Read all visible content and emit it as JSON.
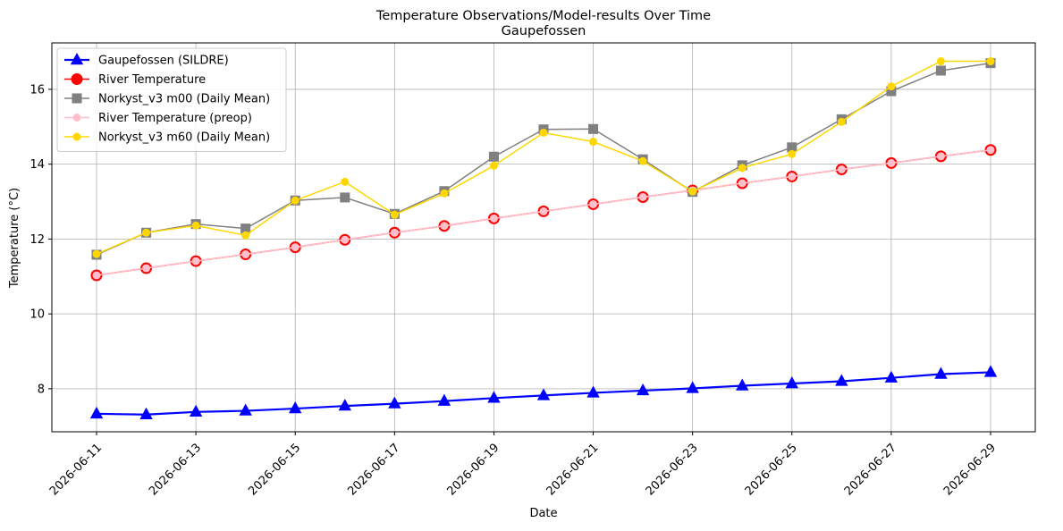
{
  "chart_data": {
    "type": "line",
    "title": "Temperature Observations/Model-results Over Time",
    "subtitle": "Gaupefossen",
    "x_label": "Date",
    "y_label": "Temperature (°C)",
    "x": [
      "2026-06-11",
      "2026-06-12",
      "2026-06-13",
      "2026-06-14",
      "2026-06-15",
      "2026-06-16",
      "2026-06-17",
      "2026-06-18",
      "2026-06-19",
      "2026-06-20",
      "2026-06-21",
      "2026-06-22",
      "2026-06-23",
      "2026-06-24",
      "2026-06-25",
      "2026-06-26",
      "2026-06-27",
      "2026-06-28",
      "2026-06-29"
    ],
    "series": [
      {
        "name": "Gaupefossen (SILDRE)",
        "color": "#0000ff",
        "marker": "triangle",
        "values": [
          7.33,
          7.31,
          7.38,
          7.41,
          7.47,
          7.54,
          7.6,
          7.67,
          7.75,
          7.82,
          7.89,
          7.95,
          8.01,
          8.08,
          8.14,
          8.2,
          8.29,
          8.39,
          8.44
        ]
      },
      {
        "name": "River Temperature",
        "color": "#ff0000",
        "marker": "circle",
        "values": [
          11.03,
          11.22,
          11.41,
          11.59,
          11.78,
          11.98,
          12.17,
          12.35,
          12.55,
          12.74,
          12.93,
          13.12,
          13.3,
          13.49,
          13.67,
          13.86,
          14.03,
          14.21,
          14.38
        ]
      },
      {
        "name": "Norkyst_v3 m00 (Daily Mean)",
        "color": "#808080",
        "marker": "square",
        "values": [
          11.58,
          12.17,
          12.4,
          12.28,
          13.03,
          13.11,
          12.67,
          13.28,
          14.2,
          14.93,
          14.94,
          14.13,
          13.26,
          13.97,
          14.45,
          15.2,
          15.95,
          16.5,
          16.7
        ]
      },
      {
        "name": "River Temperature (preop)",
        "color": "#ffc0cb",
        "marker": "small-circle",
        "values": [
          11.03,
          11.22,
          11.41,
          11.59,
          11.78,
          11.98,
          12.17,
          12.35,
          12.55,
          12.74,
          12.93,
          13.12,
          13.3,
          13.49,
          13.67,
          13.86,
          14.03,
          14.21,
          14.38
        ]
      },
      {
        "name": "Norkyst_v3 m60 (Daily Mean)",
        "color": "#ffd700",
        "marker": "small-circle",
        "values": [
          11.6,
          12.17,
          12.36,
          12.1,
          13.03,
          13.53,
          12.65,
          13.22,
          13.96,
          14.84,
          14.6,
          14.08,
          13.27,
          13.9,
          14.27,
          15.13,
          16.08,
          16.75,
          16.75
        ]
      }
    ],
    "xlim": [
      "2026-06-10T02:24:00Z",
      "2026-06-29T21:36:00Z"
    ],
    "xticks": [
      "2026-06-11",
      "2026-06-13",
      "2026-06-15",
      "2026-06-17",
      "2026-06-19",
      "2026-06-21",
      "2026-06-23",
      "2026-06-25",
      "2026-06-27",
      "2026-06-29"
    ],
    "ylim": [
      6.85,
      17.24
    ],
    "yticks": [
      8,
      10,
      12,
      14,
      16
    ],
    "grid": true,
    "legend": "upper-left"
  }
}
